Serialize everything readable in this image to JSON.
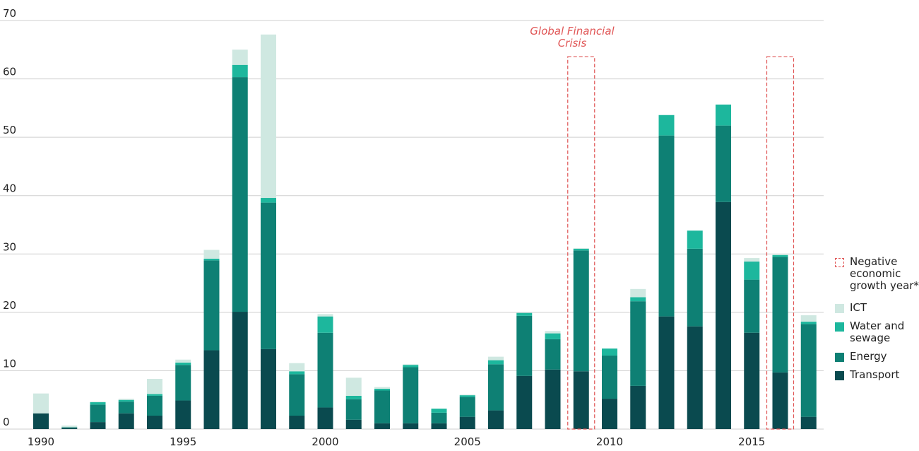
{
  "chart_data": {
    "type": "bar",
    "stacked": true,
    "categories": [
      1990,
      1991,
      1992,
      1993,
      1994,
      1995,
      1996,
      1997,
      1998,
      1999,
      2000,
      2001,
      2002,
      2003,
      2004,
      2005,
      2006,
      2007,
      2008,
      2009,
      2010,
      2011,
      2012,
      2013,
      2014,
      2015,
      2016,
      2017
    ],
    "x_tick_labels": [
      "1990",
      "1995",
      "2000",
      "2005",
      "2010",
      "2015"
    ],
    "y_tick_labels": [
      "0",
      "10",
      "20",
      "30",
      "40",
      "50",
      "60",
      "70"
    ],
    "ylim": [
      0,
      70
    ],
    "grid": true,
    "legend_placement": "right",
    "series": [
      {
        "name": "Transport",
        "color": "#0a4a4f",
        "values": [
          2.7,
          0.2,
          1.2,
          2.7,
          2.3,
          4.9,
          13.5,
          20.1,
          13.7,
          2.3,
          3.7,
          1.6,
          1.0,
          1.0,
          1.0,
          2.1,
          3.2,
          9.1,
          10.2,
          9.9,
          5.2,
          7.4,
          19.3,
          17.6,
          38.9,
          16.5,
          9.7,
          2.1
        ]
      },
      {
        "name": "Energy",
        "color": "#0e8074",
        "values": [
          0.0,
          0.1,
          3.0,
          2.0,
          3.4,
          6.1,
          15.4,
          40.2,
          25.1,
          7.1,
          12.8,
          3.5,
          5.6,
          9.6,
          1.8,
          3.4,
          7.9,
          10.3,
          5.2,
          20.7,
          7.4,
          14.5,
          31.0,
          13.3,
          13.1,
          9.1,
          19.8,
          15.9
        ]
      },
      {
        "name": "Water and sewage",
        "color": "#1db79d",
        "values": [
          0.0,
          0.0,
          0.4,
          0.3,
          0.3,
          0.4,
          0.3,
          2.1,
          0.8,
          0.5,
          2.8,
          0.6,
          0.3,
          0.4,
          0.7,
          0.3,
          0.7,
          0.5,
          1.0,
          0.3,
          1.2,
          0.7,
          3.5,
          3.1,
          3.6,
          3.1,
          0.3,
          0.4
        ]
      },
      {
        "name": "ICT",
        "color": "#cfe8e1",
        "values": [
          3.4,
          0.3,
          0.1,
          0.2,
          2.6,
          0.5,
          1.5,
          2.6,
          28.0,
          1.4,
          0.4,
          3.1,
          0.3,
          0.1,
          0.0,
          0.1,
          0.6,
          0.0,
          0.4,
          0.1,
          0.0,
          1.4,
          0.0,
          0.0,
          0.0,
          0.6,
          0.2,
          1.1
        ]
      }
    ],
    "negative_growth_years": [
      2009,
      2016
    ],
    "annotation": "Global Financial Crisis"
  },
  "legend": {
    "negative": "Negative economic growth year*",
    "ict": "ICT",
    "water": "Water and sewage",
    "energy": "Energy",
    "transport": "Transport"
  },
  "colors": {
    "transport": "#0a4a4f",
    "energy": "#0e8074",
    "water": "#1db79d",
    "ict": "#cfe8e1",
    "highlight": "#e05555",
    "grid": "#cfcfcf"
  }
}
